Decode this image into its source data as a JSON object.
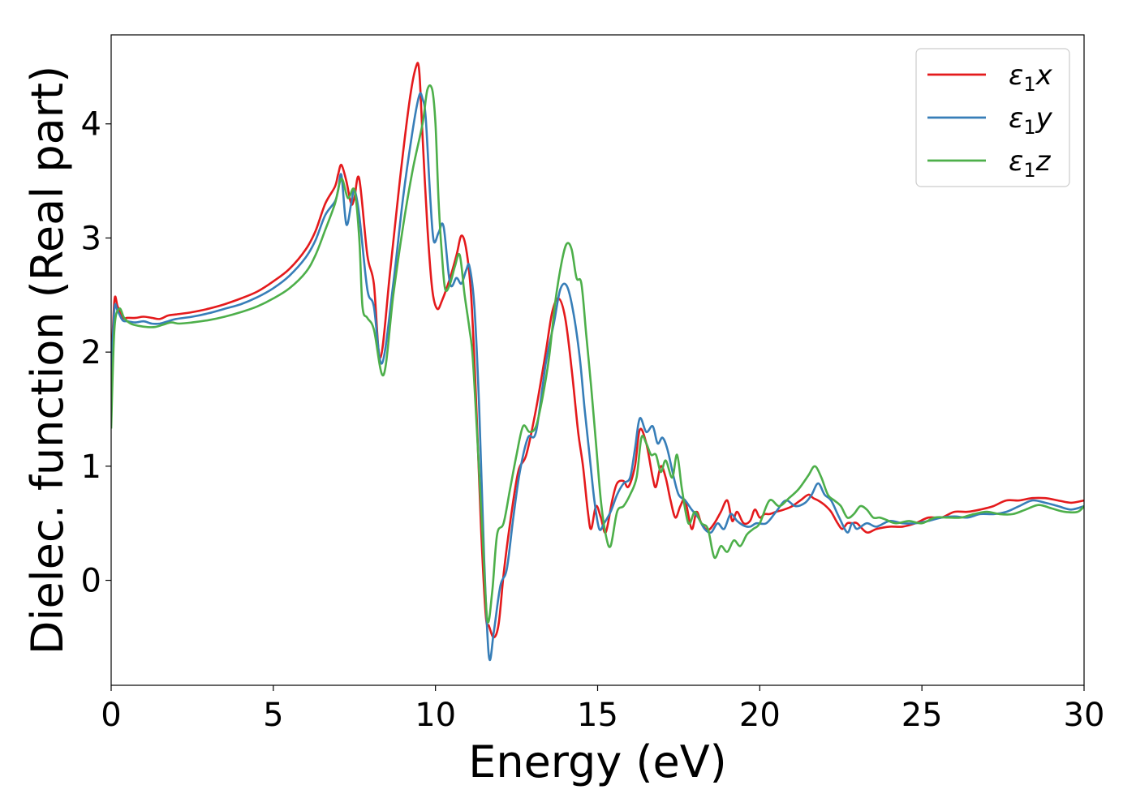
{
  "chart_data": {
    "type": "line",
    "xlabel": "Energy (eV)",
    "ylabel": "Dielec. function (Real part)",
    "xlim": [
      0,
      30
    ],
    "ylim": [
      -0.92,
      4.78
    ],
    "xticks": [
      0,
      5,
      10,
      15,
      20,
      25,
      30
    ],
    "xtick_labels": [
      "0",
      "5",
      "10",
      "15",
      "20",
      "25",
      "30"
    ],
    "yticks": [
      0,
      1,
      2,
      3,
      4
    ],
    "ytick_labels": [
      "0",
      "1",
      "2",
      "3",
      "4"
    ],
    "grid": false,
    "legend": {
      "placement": "top-right"
    },
    "series": [
      {
        "name": "ε1x",
        "base": "ε",
        "sub": "1",
        "var": "x",
        "color": "#e41a1c",
        "x": [
          0,
          0.1,
          0.2,
          0.35,
          0.5,
          0.75,
          1.0,
          1.25,
          1.5,
          1.75,
          2.0,
          2.5,
          3.0,
          3.5,
          4.0,
          4.5,
          5.0,
          5.5,
          6.0,
          6.3,
          6.6,
          6.9,
          7.0,
          7.1,
          7.25,
          7.4,
          7.5,
          7.65,
          7.9,
          8.1,
          8.3,
          8.6,
          8.9,
          9.2,
          9.4,
          9.5,
          9.6,
          9.75,
          9.9,
          10.05,
          10.2,
          10.45,
          10.65,
          10.8,
          10.95,
          11.1,
          11.25,
          11.4,
          11.55,
          11.65,
          11.8,
          11.95,
          12.1,
          12.3,
          12.55,
          12.8,
          13.1,
          13.4,
          13.6,
          13.8,
          14.0,
          14.2,
          14.4,
          14.55,
          14.7,
          14.8,
          14.95,
          15.1,
          15.25,
          15.45,
          15.6,
          15.8,
          15.95,
          16.15,
          16.3,
          16.5,
          16.7,
          16.8,
          16.95,
          17.1,
          17.25,
          17.4,
          17.55,
          17.7,
          17.9,
          18.05,
          18.2,
          18.4,
          18.6,
          18.8,
          19.0,
          19.15,
          19.3,
          19.5,
          19.7,
          19.85,
          20.0,
          20.15,
          20.3,
          20.5,
          20.75,
          21.0,
          21.25,
          21.5,
          21.65,
          21.8,
          22.0,
          22.2,
          22.4,
          22.55,
          22.7,
          22.85,
          23.0,
          23.3,
          23.6,
          24.0,
          24.4,
          24.8,
          25.2,
          25.6,
          26.0,
          26.4,
          26.8,
          27.2,
          27.6,
          28.0,
          28.4,
          28.8,
          29.2,
          29.6,
          30.0
        ],
        "y": [
          1.82,
          2.45,
          2.4,
          2.3,
          2.3,
          2.3,
          2.31,
          2.3,
          2.29,
          2.32,
          2.33,
          2.35,
          2.38,
          2.42,
          2.47,
          2.53,
          2.62,
          2.73,
          2.9,
          3.06,
          3.3,
          3.45,
          3.56,
          3.64,
          3.5,
          3.3,
          3.35,
          3.52,
          2.85,
          2.6,
          1.95,
          2.7,
          3.5,
          4.2,
          4.5,
          4.46,
          3.9,
          3.1,
          2.55,
          2.38,
          2.45,
          2.65,
          2.85,
          3.02,
          2.9,
          2.5,
          1.6,
          0.5,
          -0.3,
          -0.4,
          -0.5,
          -0.38,
          0.05,
          0.5,
          0.95,
          1.1,
          1.5,
          2.0,
          2.35,
          2.47,
          2.3,
          1.85,
          1.3,
          1.0,
          0.6,
          0.45,
          0.65,
          0.55,
          0.42,
          0.7,
          0.85,
          0.87,
          0.82,
          1.0,
          1.32,
          1.2,
          0.9,
          0.82,
          1.0,
          0.9,
          0.7,
          0.55,
          0.65,
          0.7,
          0.45,
          0.6,
          0.5,
          0.44,
          0.5,
          0.6,
          0.7,
          0.52,
          0.6,
          0.5,
          0.52,
          0.62,
          0.55,
          0.58,
          0.58,
          0.6,
          0.62,
          0.65,
          0.7,
          0.75,
          0.72,
          0.7,
          0.66,
          0.6,
          0.5,
          0.45,
          0.5,
          0.5,
          0.5,
          0.42,
          0.45,
          0.47,
          0.47,
          0.5,
          0.55,
          0.55,
          0.6,
          0.6,
          0.62,
          0.65,
          0.7,
          0.7,
          0.72,
          0.72,
          0.7,
          0.68,
          0.7
        ]
      },
      {
        "name": "ε1y",
        "base": "ε",
        "sub": "1",
        "var": "y",
        "color": "#377eb8",
        "x": [
          0,
          0.1,
          0.2,
          0.35,
          0.5,
          0.75,
          1.0,
          1.25,
          1.5,
          1.75,
          2.0,
          2.5,
          3.0,
          3.5,
          4.0,
          4.5,
          5.0,
          5.5,
          6.0,
          6.3,
          6.6,
          6.9,
          7.0,
          7.1,
          7.25,
          7.4,
          7.5,
          7.65,
          7.9,
          8.1,
          8.35,
          8.7,
          9.0,
          9.3,
          9.5,
          9.6,
          9.7,
          9.85,
          9.95,
          10.1,
          10.25,
          10.45,
          10.65,
          10.8,
          10.95,
          11.05,
          11.2,
          11.35,
          11.5,
          11.65,
          11.8,
          12.0,
          12.2,
          12.4,
          12.6,
          12.85,
          13.1,
          13.4,
          13.65,
          13.85,
          14.05,
          14.25,
          14.45,
          14.6,
          14.75,
          14.9,
          15.05,
          15.2,
          15.4,
          15.6,
          15.8,
          16.0,
          16.15,
          16.3,
          16.5,
          16.7,
          16.85,
          17.0,
          17.15,
          17.35,
          17.5,
          17.7,
          17.9,
          18.1,
          18.3,
          18.5,
          18.7,
          18.9,
          19.1,
          19.3,
          19.5,
          19.7,
          19.9,
          20.2,
          20.5,
          20.8,
          21.1,
          21.4,
          21.6,
          21.8,
          22.0,
          22.2,
          22.45,
          22.7,
          22.85,
          23.0,
          23.3,
          23.6,
          24.0,
          24.4,
          24.8,
          25.2,
          25.6,
          26.0,
          26.4,
          26.8,
          27.2,
          27.6,
          28.0,
          28.4,
          28.8,
          29.2,
          29.6,
          30.0
        ],
        "y": [
          1.78,
          2.38,
          2.36,
          2.28,
          2.27,
          2.26,
          2.27,
          2.25,
          2.25,
          2.27,
          2.29,
          2.31,
          2.34,
          2.38,
          2.42,
          2.48,
          2.56,
          2.67,
          2.83,
          2.98,
          3.2,
          3.32,
          3.42,
          3.55,
          3.12,
          3.3,
          3.42,
          3.2,
          2.55,
          2.4,
          1.9,
          2.6,
          3.35,
          3.95,
          4.25,
          4.22,
          4.05,
          3.3,
          2.97,
          3.05,
          3.1,
          2.6,
          2.65,
          2.6,
          2.72,
          2.75,
          2.4,
          1.5,
          0.2,
          -0.67,
          -0.45,
          -0.05,
          0.1,
          0.55,
          0.95,
          1.25,
          1.3,
          1.9,
          2.25,
          2.55,
          2.58,
          2.35,
          1.95,
          1.5,
          1.1,
          0.7,
          0.45,
          0.5,
          0.6,
          0.75,
          0.85,
          0.9,
          1.15,
          1.42,
          1.3,
          1.35,
          1.2,
          1.25,
          1.15,
          0.9,
          0.75,
          0.7,
          0.62,
          0.55,
          0.45,
          0.42,
          0.5,
          0.45,
          0.58,
          0.52,
          0.48,
          0.47,
          0.5,
          0.5,
          0.6,
          0.7,
          0.65,
          0.68,
          0.75,
          0.85,
          0.75,
          0.7,
          0.55,
          0.42,
          0.5,
          0.45,
          0.5,
          0.47,
          0.52,
          0.5,
          0.5,
          0.52,
          0.55,
          0.56,
          0.55,
          0.58,
          0.58,
          0.6,
          0.65,
          0.7,
          0.68,
          0.65,
          0.62,
          0.65
        ]
      },
      {
        "name": "ε1z",
        "base": "ε",
        "sub": "1",
        "var": "z",
        "color": "#4daf4a",
        "x": [
          0,
          0.1,
          0.25,
          0.4,
          0.6,
          0.85,
          1.1,
          1.35,
          1.6,
          1.85,
          2.1,
          2.5,
          3.0,
          3.5,
          4.0,
          4.5,
          5.0,
          5.5,
          6.0,
          6.3,
          6.6,
          6.9,
          7.1,
          7.3,
          7.5,
          7.65,
          7.75,
          7.9,
          8.1,
          8.4,
          8.7,
          9.0,
          9.3,
          9.6,
          9.75,
          9.9,
          10.0,
          10.1,
          10.2,
          10.3,
          10.45,
          10.6,
          10.75,
          10.9,
          11.05,
          11.15,
          11.3,
          11.45,
          11.6,
          11.75,
          11.9,
          12.1,
          12.3,
          12.5,
          12.7,
          12.9,
          13.1,
          13.3,
          13.5,
          13.7,
          13.9,
          14.05,
          14.2,
          14.35,
          14.5,
          14.65,
          14.8,
          14.95,
          15.1,
          15.25,
          15.4,
          15.6,
          15.8,
          16.0,
          16.2,
          16.35,
          16.5,
          16.65,
          16.8,
          16.95,
          17.1,
          17.3,
          17.45,
          17.6,
          17.8,
          18.0,
          18.2,
          18.4,
          18.6,
          18.8,
          19.0,
          19.2,
          19.4,
          19.6,
          19.8,
          20.0,
          20.3,
          20.6,
          20.9,
          21.2,
          21.5,
          21.7,
          21.9,
          22.1,
          22.3,
          22.5,
          22.7,
          22.9,
          23.1,
          23.3,
          23.5,
          23.7,
          23.9,
          24.2,
          24.6,
          25.0,
          25.4,
          25.8,
          26.2,
          26.6,
          27.0,
          27.4,
          27.8,
          28.2,
          28.6,
          29.0,
          29.4,
          29.8,
          30.0
        ],
        "y": [
          1.33,
          2.2,
          2.38,
          2.3,
          2.25,
          2.23,
          2.22,
          2.22,
          2.24,
          2.26,
          2.25,
          2.26,
          2.28,
          2.31,
          2.35,
          2.4,
          2.47,
          2.56,
          2.7,
          2.85,
          3.07,
          3.3,
          3.52,
          3.35,
          3.42,
          3.0,
          2.4,
          2.3,
          2.2,
          1.8,
          2.5,
          3.1,
          3.6,
          4.0,
          4.3,
          4.3,
          4.0,
          3.3,
          2.85,
          2.55,
          2.6,
          2.75,
          2.85,
          2.5,
          2.2,
          1.95,
          1.2,
          0.4,
          -0.35,
          -0.1,
          0.4,
          0.5,
          0.8,
          1.1,
          1.35,
          1.3,
          1.35,
          1.6,
          1.95,
          2.45,
          2.8,
          2.95,
          2.9,
          2.65,
          2.6,
          2.15,
          1.7,
          1.2,
          0.7,
          0.4,
          0.3,
          0.6,
          0.65,
          0.75,
          0.9,
          1.25,
          1.2,
          1.1,
          1.1,
          0.95,
          1.05,
          0.9,
          1.1,
          0.8,
          0.5,
          0.6,
          0.5,
          0.45,
          0.2,
          0.3,
          0.25,
          0.35,
          0.3,
          0.4,
          0.45,
          0.5,
          0.7,
          0.65,
          0.72,
          0.8,
          0.92,
          1.0,
          0.9,
          0.75,
          0.7,
          0.65,
          0.55,
          0.58,
          0.65,
          0.62,
          0.55,
          0.55,
          0.53,
          0.5,
          0.52,
          0.5,
          0.55,
          0.55,
          0.55,
          0.58,
          0.6,
          0.58,
          0.58,
          0.62,
          0.66,
          0.63,
          0.6,
          0.6,
          0.65
        ]
      }
    ]
  }
}
